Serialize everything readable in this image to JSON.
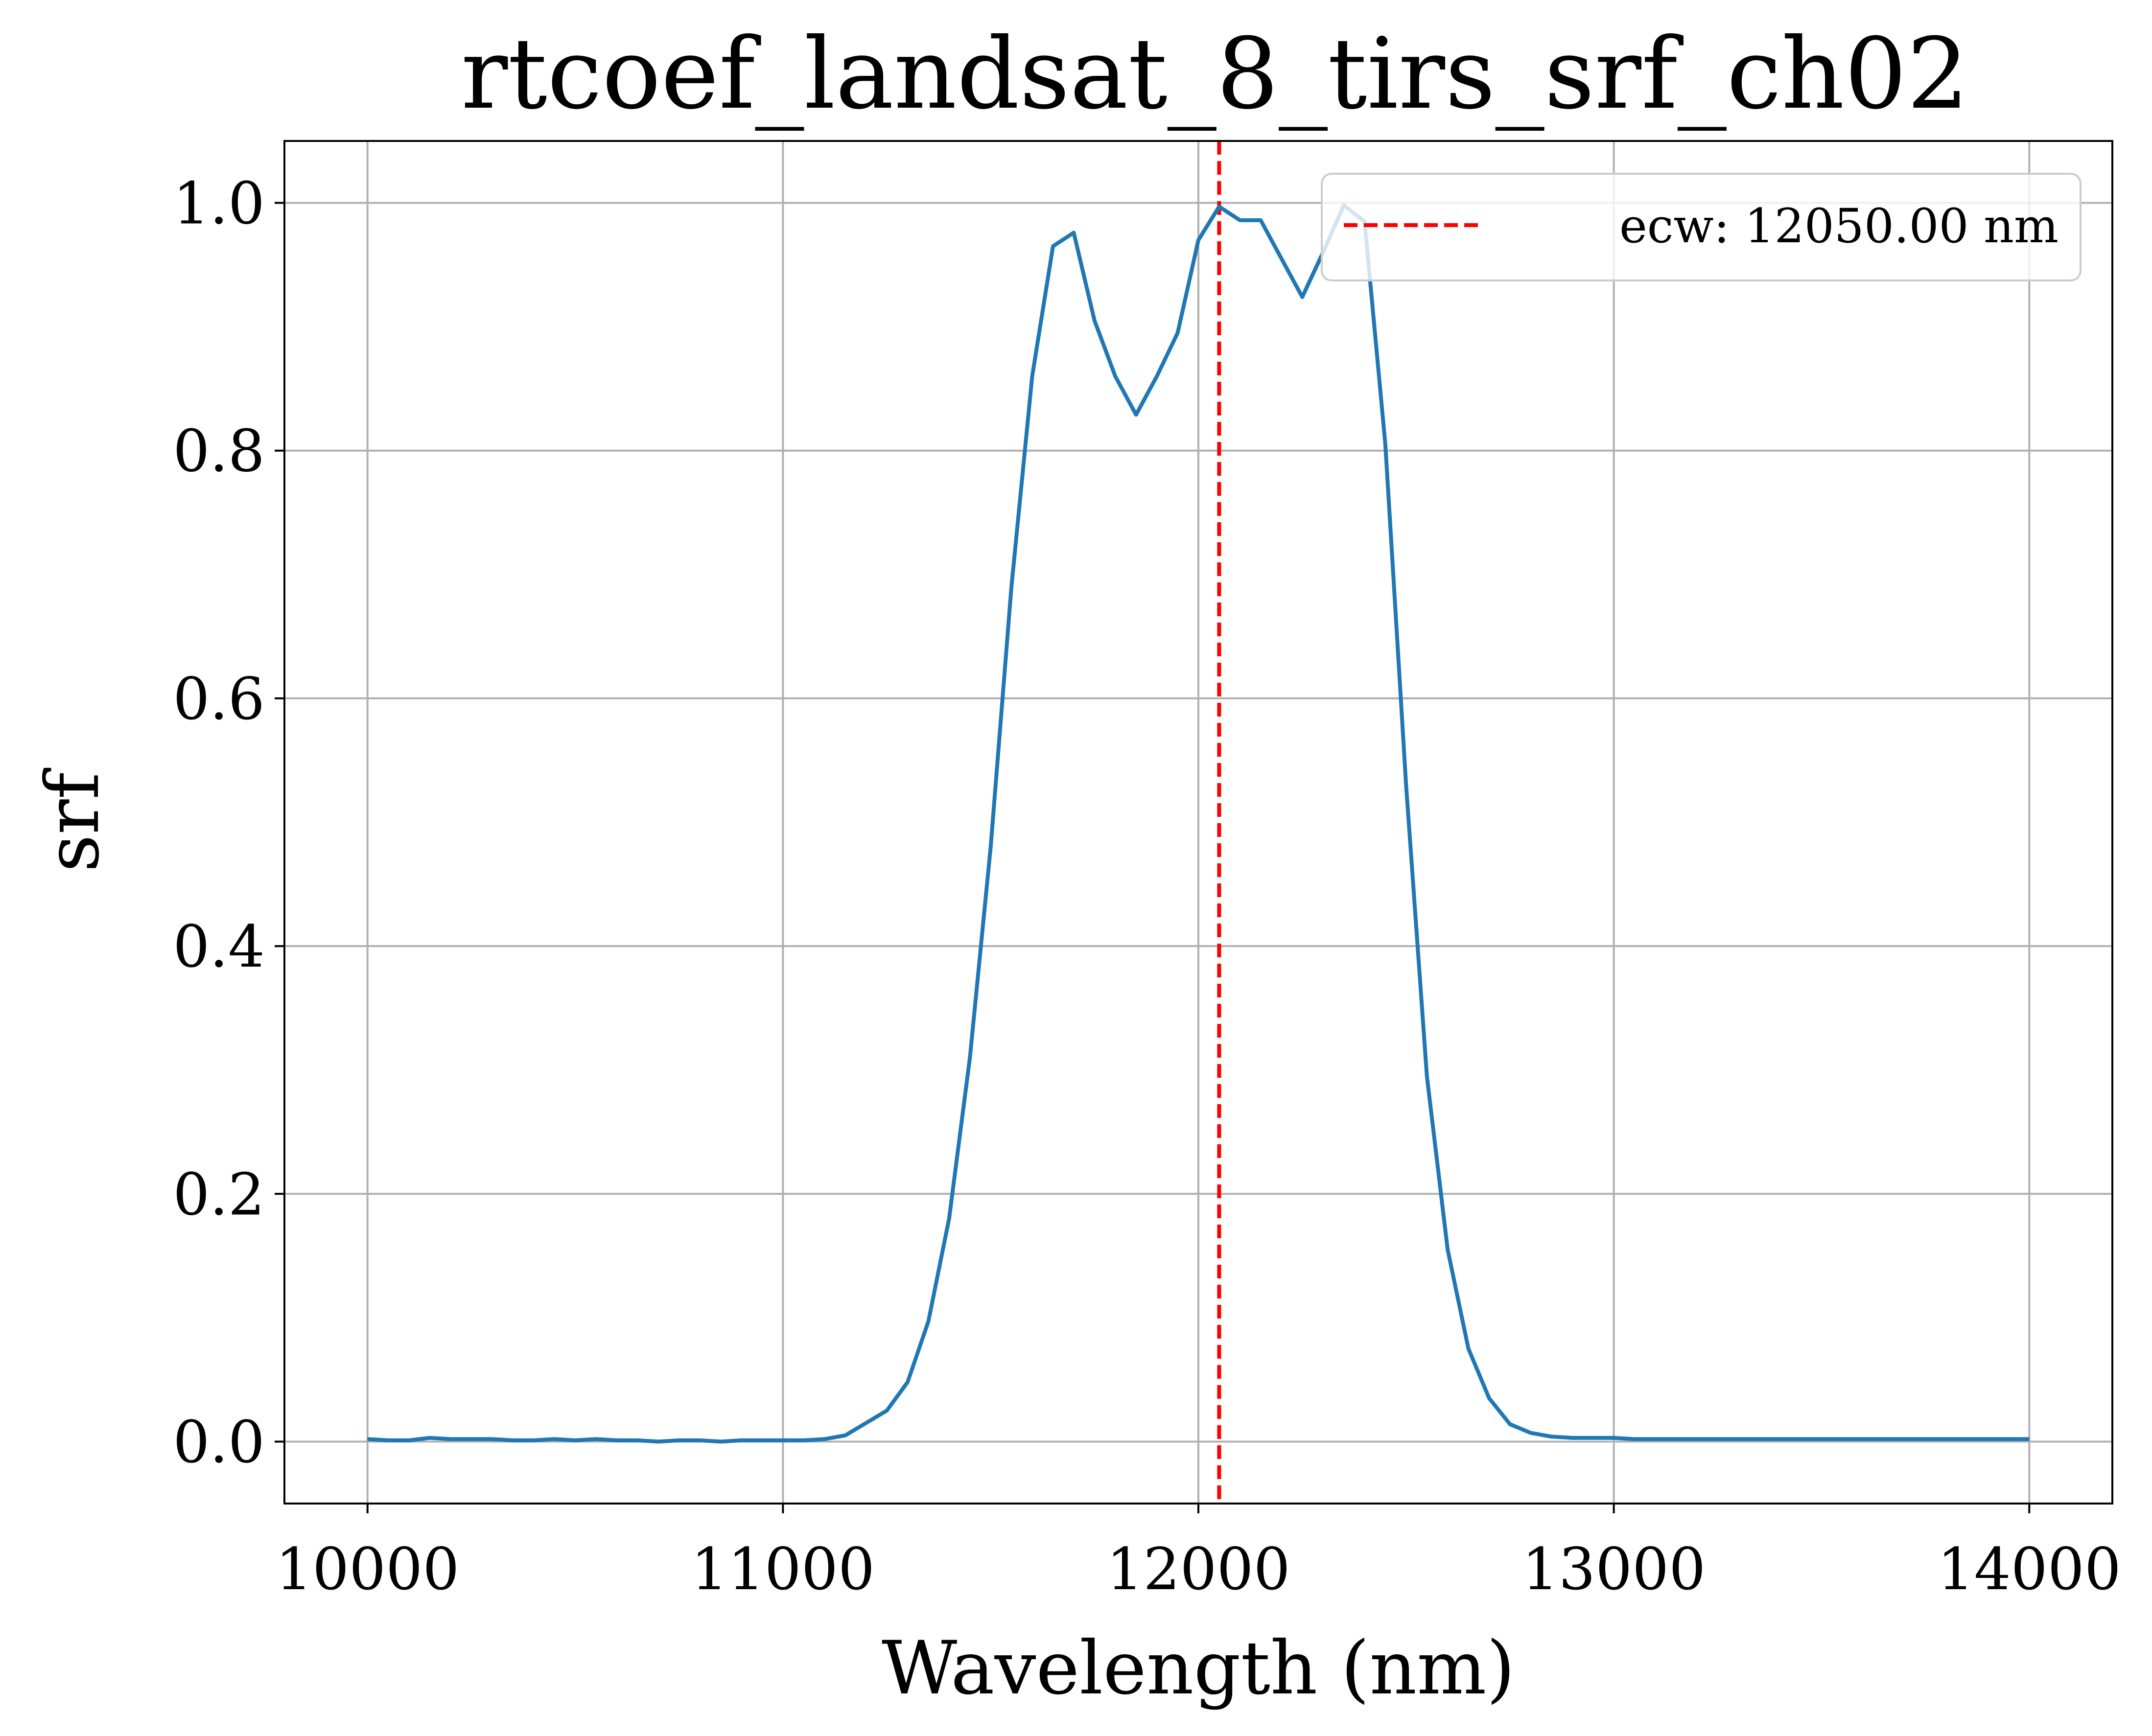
{
  "chart_data": {
    "type": "line",
    "title": "rtcoef_landsat_8_tirs_srf_ch02",
    "xlabel": "Wavelength (nm)",
    "ylabel": "srf",
    "xlim": [
      9800,
      14200
    ],
    "ylim": [
      -0.05,
      1.05
    ],
    "grid": true,
    "x_ticks": [
      10000,
      11000,
      12000,
      13000,
      14000
    ],
    "x_tick_labels": [
      "10000",
      "11000",
      "12000",
      "13000",
      "14000"
    ],
    "y_ticks": [
      0.0,
      0.2,
      0.4,
      0.6,
      0.8,
      1.0
    ],
    "y_tick_labels": [
      "0.0",
      "0.2",
      "0.4",
      "0.6",
      "0.8",
      "1.0"
    ],
    "series": [
      {
        "color": "#1f77b4",
        "x": [
          10000,
          10050,
          10100,
          10150,
          10200,
          10250,
          10300,
          10350,
          10400,
          10450,
          10500,
          10550,
          10600,
          10650,
          10700,
          10750,
          10800,
          10850,
          10900,
          10950,
          11000,
          11050,
          11100,
          11150,
          11200,
          11250,
          11300,
          11350,
          11400,
          11450,
          11500,
          11550,
          11600,
          11650,
          11700,
          11750,
          11800,
          11850,
          11900,
          11950,
          12000,
          12050,
          12100,
          12150,
          12200,
          12250,
          12300,
          12350,
          12400,
          12450,
          12500,
          12550,
          12600,
          12650,
          12700,
          12750,
          12800,
          12850,
          12900,
          12950,
          13000,
          13050,
          13100,
          13150,
          13200,
          13250,
          13300,
          13350,
          13400,
          13450,
          13500,
          13550,
          13600,
          13650,
          13700,
          13750,
          13800,
          13850,
          13900,
          13950,
          14000
        ],
        "y": [
          0.002,
          0.001,
          0.001,
          0.003,
          0.002,
          0.002,
          0.002,
          0.001,
          0.001,
          0.002,
          0.001,
          0.002,
          0.001,
          0.001,
          0.0,
          0.001,
          0.001,
          0.0,
          0.001,
          0.001,
          0.001,
          0.001,
          0.002,
          0.005,
          0.015,
          0.025,
          0.048,
          0.097,
          0.18,
          0.31,
          0.48,
          0.69,
          0.86,
          0.965,
          0.976,
          0.905,
          0.86,
          0.829,
          0.86,
          0.895,
          0.97,
          0.997,
          0.986,
          0.986,
          0.955,
          0.924,
          0.96,
          0.998,
          0.985,
          0.805,
          0.53,
          0.295,
          0.155,
          0.075,
          0.035,
          0.014,
          0.007,
          0.004,
          0.003,
          0.003,
          0.003,
          0.002,
          0.002,
          0.002,
          0.002,
          0.002,
          0.002,
          0.002,
          0.002,
          0.002,
          0.002,
          0.002,
          0.002,
          0.002,
          0.002,
          0.002,
          0.002,
          0.002,
          0.002,
          0.002,
          0.002
        ]
      }
    ],
    "vline": {
      "x": 12050,
      "color": "#ff0000",
      "style": "dashed"
    },
    "legend": {
      "placement": "top-right",
      "entries": [
        "ecw: 12050.00 nm"
      ]
    }
  }
}
